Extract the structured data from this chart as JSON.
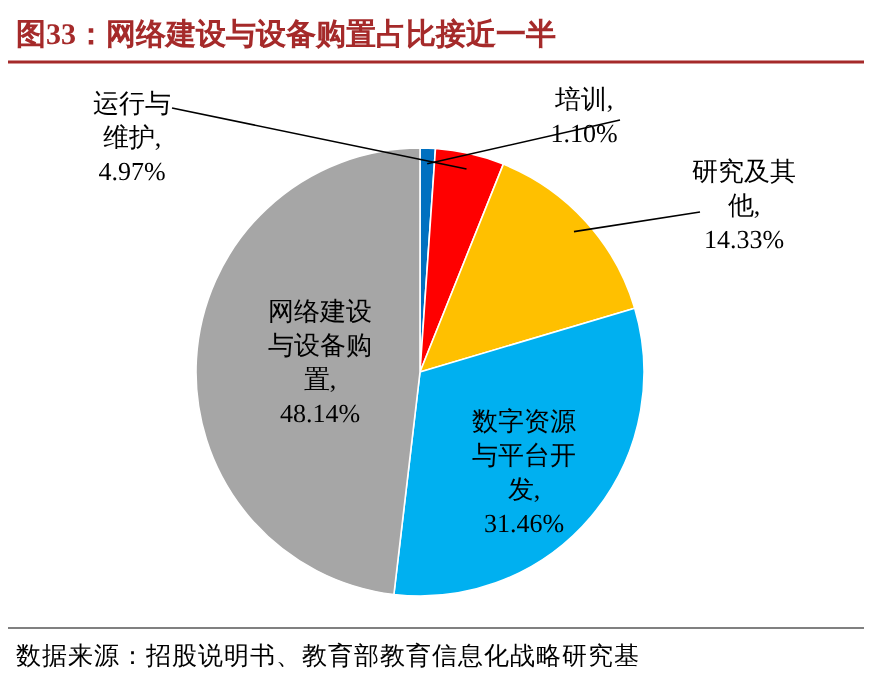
{
  "chart_data": {
    "type": "pie",
    "title": "图33：网络建设与设备购置占比接近一半",
    "categories": [
      "培训",
      "运行与维护",
      "研究及其他",
      "数字资源与平台开发",
      "网络建设与设备购置"
    ],
    "values": [
      1.1,
      4.97,
      14.33,
      31.46,
      48.14
    ],
    "value_labels": [
      ", 1.10%",
      ", 4.97%",
      ", 14.33%",
      ", 31.46%",
      ", 48.14%"
    ],
    "colors": [
      "#0070c0",
      "#ff0000",
      "#ffc000",
      "#00b0f0",
      "#a6a6a6"
    ],
    "annotations": [
      "数据来源：招股说明书、教育部教育信息化战略研究基"
    ]
  }
}
